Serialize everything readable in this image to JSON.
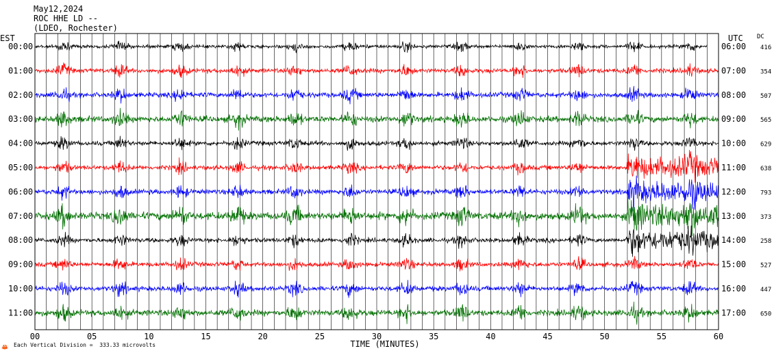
{
  "header": {
    "line1": "May12,2024",
    "line2": "ROC HHE LD --",
    "line3": "(LDEO, Rochester)"
  },
  "chart_data": {
    "type": "line",
    "title": "May12,2024 ROC HHE LD -- (LDEO, Rochester)",
    "left_axis_title": "EST",
    "right_axis_title": "UTC",
    "dc_header": "DC",
    "xlabel": "TIME (MINUTES)",
    "xlim": [
      0,
      60
    ],
    "x_ticks": [
      "00",
      "05",
      "10",
      "15",
      "20",
      "25",
      "30",
      "35",
      "40",
      "45",
      "50",
      "55",
      "60"
    ],
    "grid": true,
    "footer_icon_glyph": "🦀",
    "footer": "Each Vertical Division =  333.33 microvolts",
    "line_colors": [
      "#000000",
      "#ff0000",
      "#0000ff",
      "#007000"
    ],
    "rows": [
      {
        "est": "00:00",
        "utc": "06:00",
        "dc": "416",
        "color": "#000000",
        "noise": 0.35,
        "end_minute": 59
      },
      {
        "est": "01:00",
        "utc": "07:00",
        "dc": "354",
        "color": "#ff0000",
        "noise": 0.45,
        "end_minute": 60
      },
      {
        "est": "02:00",
        "utc": "08:00",
        "dc": "507",
        "color": "#0000ff",
        "noise": 0.5,
        "end_minute": 60
      },
      {
        "est": "03:00",
        "utc": "09:00",
        "dc": "565",
        "color": "#007000",
        "noise": 0.6,
        "end_minute": 60
      },
      {
        "est": "04:00",
        "utc": "10:00",
        "dc": "629",
        "color": "#000000",
        "noise": 0.45,
        "end_minute": 60
      },
      {
        "est": "05:00",
        "utc": "11:00",
        "dc": "638",
        "color": "#ff0000",
        "noise": 0.45,
        "end_minute": 60
      },
      {
        "est": "06:00",
        "utc": "12:00",
        "dc": "793",
        "color": "#0000ff",
        "noise": 0.5,
        "end_minute": 60
      },
      {
        "est": "07:00",
        "utc": "13:00",
        "dc": "373",
        "color": "#007000",
        "noise": 0.75,
        "end_minute": 60
      },
      {
        "est": "08:00",
        "utc": "14:00",
        "dc": "258",
        "color": "#000000",
        "noise": 0.45,
        "end_minute": 60
      },
      {
        "est": "09:00",
        "utc": "15:00",
        "dc": "527",
        "color": "#ff0000",
        "noise": 0.45,
        "end_minute": 60
      },
      {
        "est": "10:00",
        "utc": "16:00",
        "dc": "447",
        "color": "#0000ff",
        "noise": 0.5,
        "end_minute": 60
      },
      {
        "est": "11:00",
        "utc": "17:00",
        "dc": "650",
        "color": "#007000",
        "noise": 0.6,
        "end_minute": 60
      }
    ]
  }
}
